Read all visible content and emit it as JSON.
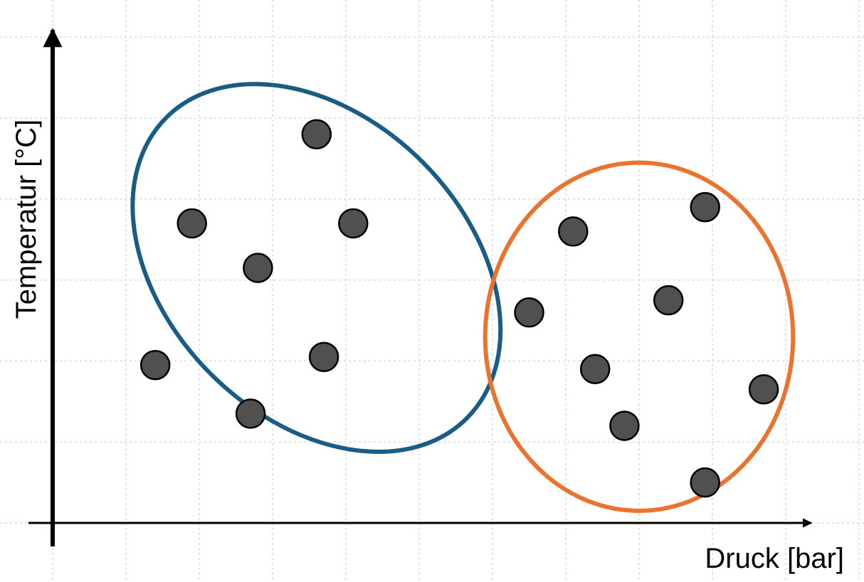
{
  "chart_data": {
    "type": "scatter",
    "title": "",
    "xlabel": "Druck [bar]",
    "ylabel": "Temperatur [°C]",
    "xlim": [
      0,
      10
    ],
    "ylim": [
      0,
      10
    ],
    "grid": true,
    "x_ticks": [
      0,
      1,
      2,
      3,
      4,
      5,
      6,
      7,
      8,
      9,
      10
    ],
    "y_ticks": [
      0,
      2,
      4,
      6,
      8,
      10
    ],
    "series": [
      {
        "color": "#1a5c85",
        "points": [
          [
            3.6,
            9.6
          ],
          [
            1.9,
            7.4
          ],
          [
            4.1,
            7.4
          ],
          [
            2.8,
            6.3
          ],
          [
            1.4,
            3.9
          ],
          [
            3.7,
            4.1
          ],
          [
            2.7,
            2.7
          ]
        ],
        "cluster_ellipse": {
          "cx": 3.6,
          "cy": 6.3,
          "rx": 2.9,
          "ry": 3.7,
          "rotation": 45
        }
      },
      {
        "color": "#ea7330",
        "points": [
          [
            8.9,
            7.8
          ],
          [
            7.1,
            7.2
          ],
          [
            8.4,
            5.5
          ],
          [
            6.5,
            5.2
          ],
          [
            7.4,
            3.8
          ],
          [
            9.7,
            3.3
          ],
          [
            7.8,
            2.4
          ],
          [
            8.9,
            1.0
          ]
        ],
        "cluster_ellipse": {
          "cx": 8.0,
          "cy": 4.6,
          "rx": 2.1,
          "ry": 4.3,
          "rotation": 0
        }
      }
    ]
  }
}
